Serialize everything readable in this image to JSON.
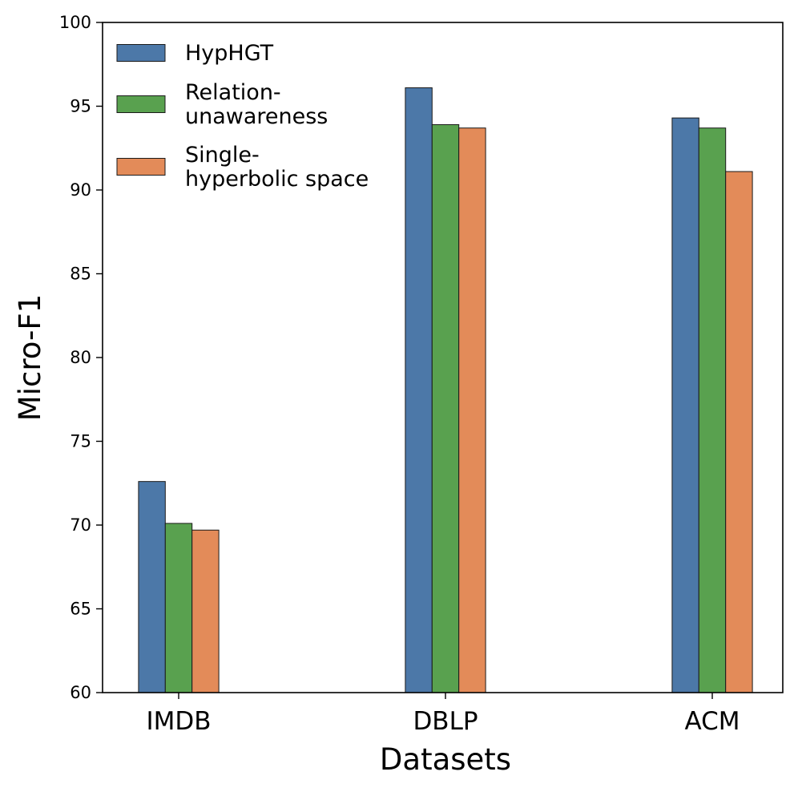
{
  "chart_data": {
    "type": "bar",
    "title": "",
    "xlabel": "Datasets",
    "ylabel": "Micro-F1",
    "ylim": [
      60,
      100
    ],
    "yticks": [
      60,
      65,
      70,
      75,
      80,
      85,
      90,
      95,
      100
    ],
    "categories": [
      "IMDB",
      "DBLP",
      "ACM"
    ],
    "series": [
      {
        "name": "HypHGT",
        "legend_lines": [
          "HypHGT"
        ],
        "color": "#4c78a8",
        "values": [
          72.6,
          96.1,
          94.3
        ]
      },
      {
        "name": "Relation-unawareness",
        "legend_lines": [
          "Relation-",
          "unawareness"
        ],
        "color": "#59a14f",
        "values": [
          70.1,
          93.9,
          93.7
        ]
      },
      {
        "name": "Single-hyperbolic space",
        "legend_lines": [
          "Single-",
          "hyperbolic space"
        ],
        "color": "#e38b59",
        "values": [
          69.7,
          93.7,
          91.1
        ]
      }
    ],
    "legend_position": "top-left",
    "grid": false
  }
}
